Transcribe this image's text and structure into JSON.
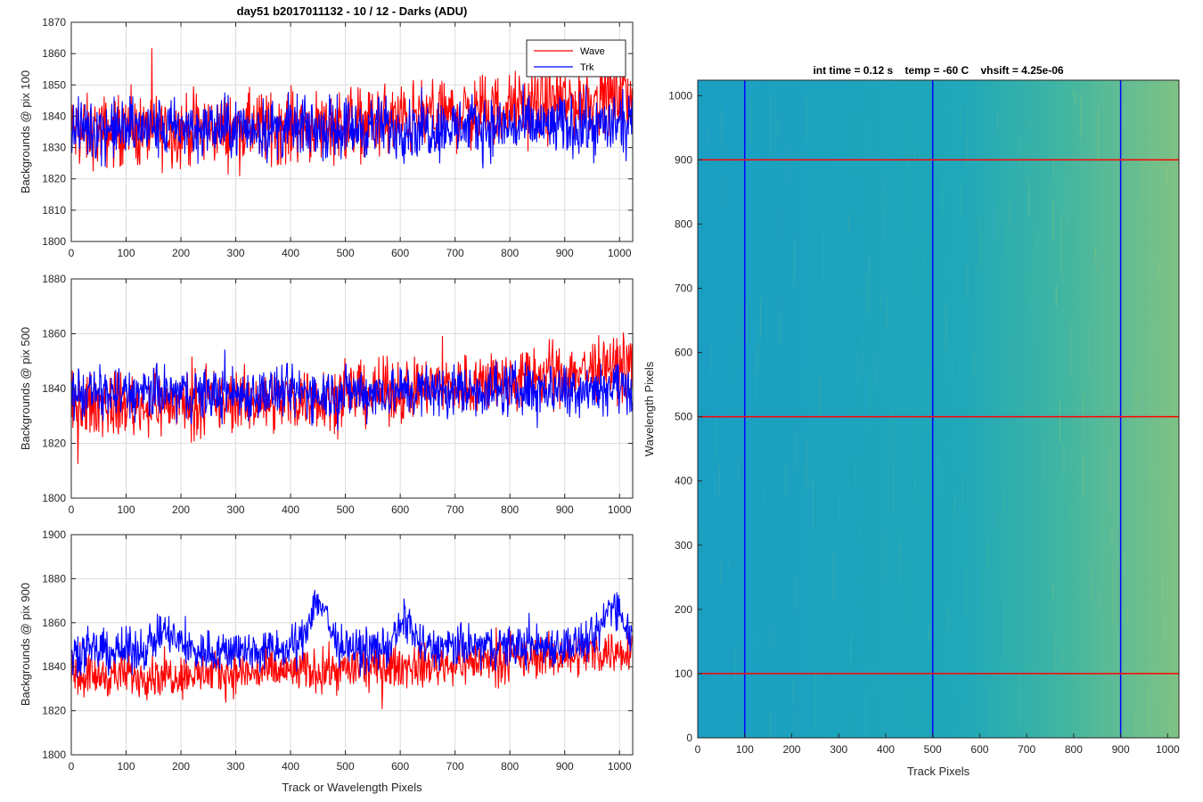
{
  "figure_title": "day51 b2017011132 - 10 / 12 - Darks (ADU)",
  "colors": {
    "wave": "#ff0000",
    "trk": "#0000ff",
    "grid": "#d9d9d9",
    "axis": "#262626",
    "map_base": "#1aa3c2",
    "map_high": "#9ec879",
    "map_line_blue": "#0000ff",
    "map_line_red": "#ff0000"
  },
  "chart_data": [
    {
      "type": "line",
      "id": "pix100",
      "xlabel": "",
      "ylabel": "Backgrounds @ pix 100",
      "xlim": [
        0,
        1024
      ],
      "ylim": [
        1800,
        1870
      ],
      "yticks": [
        1800,
        1810,
        1820,
        1830,
        1840,
        1850,
        1860,
        1870
      ],
      "xticks": [
        0,
        100,
        200,
        300,
        400,
        500,
        600,
        700,
        800,
        900,
        1000
      ],
      "grid": true,
      "legend": {
        "placement": "top-right",
        "entries": [
          "Wave",
          "Trk"
        ]
      },
      "series": [
        {
          "name": "Wave",
          "color": "#ff0000",
          "base": 1835,
          "drift": 12,
          "noise": 7,
          "spike": 12
        },
        {
          "name": "Trk",
          "color": "#0000ff",
          "base": 1836,
          "drift": 1,
          "noise": 6,
          "spike": 9
        }
      ]
    },
    {
      "type": "line",
      "id": "pix500",
      "xlabel": "",
      "ylabel": "Backgrounds @ pix 500",
      "xlim": [
        0,
        1024
      ],
      "ylim": [
        1800,
        1880
      ],
      "yticks": [
        1800,
        1820,
        1840,
        1860,
        1880
      ],
      "xticks": [
        0,
        100,
        200,
        300,
        400,
        500,
        600,
        700,
        800,
        900,
        1000
      ],
      "grid": true,
      "series": [
        {
          "name": "Wave",
          "color": "#ff0000",
          "base": 1834,
          "drift": 15,
          "noise": 7,
          "spike": 15
        },
        {
          "name": "Trk",
          "color": "#0000ff",
          "base": 1838,
          "drift": 3,
          "noise": 6,
          "spike": 12
        }
      ]
    },
    {
      "type": "line",
      "id": "pix900",
      "xlabel": "Track or Wavelength Pixels",
      "ylabel": "Backgrounds @ pix 900",
      "xlim": [
        0,
        1024
      ],
      "ylim": [
        1800,
        1900
      ],
      "yticks": [
        1800,
        1820,
        1840,
        1860,
        1880,
        1900
      ],
      "xticks": [
        0,
        100,
        200,
        300,
        400,
        500,
        600,
        700,
        800,
        900,
        1000
      ],
      "grid": true,
      "series": [
        {
          "name": "Wave",
          "color": "#ff0000",
          "base": 1836,
          "drift": 12,
          "noise": 6,
          "spike": 14
        },
        {
          "name": "Trk",
          "color": "#0000ff",
          "base": 1847,
          "drift": 4,
          "noise": 6,
          "spike": 10,
          "bumps": [
            [
              170,
              8,
              60
            ],
            [
              450,
              22,
              50
            ],
            [
              610,
              12,
              40
            ],
            [
              990,
              18,
              50
            ]
          ]
        }
      ]
    },
    {
      "type": "heatmap",
      "id": "frame",
      "title": "int time = 0.12 s    temp = -60 C    vhsift = 4.25e-06",
      "xlabel": "Track Pixels",
      "ylabel": "Wavelength Pixels",
      "xlim": [
        0,
        1024
      ],
      "ylim": [
        0,
        1024
      ],
      "xticks": [
        0,
        100,
        200,
        300,
        400,
        500,
        600,
        700,
        800,
        900,
        1000
      ],
      "yticks": [
        0,
        100,
        200,
        300,
        400,
        500,
        600,
        700,
        800,
        900,
        1000
      ],
      "grid": false,
      "vertical_markers": [
        100,
        500,
        900
      ],
      "horizontal_markers": [
        100,
        500,
        900
      ]
    }
  ]
}
